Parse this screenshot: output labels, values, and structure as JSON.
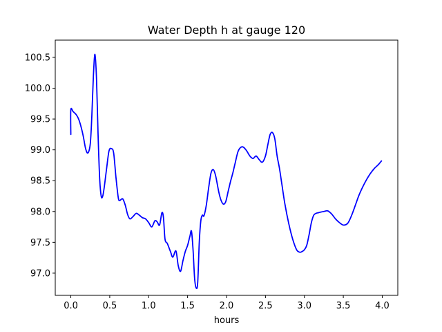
{
  "chart_data": {
    "type": "line",
    "title": "Water Depth h at gauge 120",
    "xlabel": "hours",
    "ylabel": "",
    "xlim": [
      -0.2,
      4.2
    ],
    "ylim": [
      96.64,
      100.78
    ],
    "xticks": [
      0.0,
      0.5,
      1.0,
      1.5,
      2.0,
      2.5,
      3.0,
      3.5,
      4.0
    ],
    "xtick_labels": [
      "0.0",
      "0.5",
      "1.0",
      "1.5",
      "2.0",
      "2.5",
      "3.0",
      "3.5",
      "4.0"
    ],
    "yticks": [
      97.0,
      97.5,
      98.0,
      98.5,
      99.0,
      99.5,
      100.0,
      100.5
    ],
    "ytick_labels": [
      "97.0",
      "97.5",
      "98.0",
      "98.5",
      "99.0",
      "99.5",
      "100.0",
      "100.5"
    ],
    "grid": false,
    "line_color": "#0000ff",
    "series": [
      {
        "x": [
          0.0,
          0.0,
          0.03,
          0.07,
          0.1,
          0.13,
          0.16,
          0.19,
          0.22,
          0.25,
          0.27,
          0.29,
          0.31,
          0.33,
          0.35,
          0.37,
          0.39,
          0.41,
          0.43,
          0.46,
          0.49,
          0.52,
          0.55,
          0.58,
          0.61,
          0.63,
          0.65,
          0.67,
          0.7,
          0.73,
          0.76,
          0.8,
          0.84,
          0.88,
          0.92,
          0.96,
          1.0,
          1.04,
          1.08,
          1.11,
          1.14,
          1.17,
          1.19,
          1.21,
          1.24,
          1.28,
          1.31,
          1.35,
          1.38,
          1.41,
          1.44,
          1.47,
          1.5,
          1.53,
          1.55,
          1.57,
          1.59,
          1.61,
          1.63,
          1.65,
          1.67,
          1.69,
          1.71,
          1.74,
          1.77,
          1.8,
          1.83,
          1.86,
          1.9,
          1.93,
          1.96,
          1.99,
          2.02,
          2.05,
          2.08,
          2.11,
          2.15,
          2.2,
          2.25,
          2.3,
          2.34,
          2.38,
          2.42,
          2.46,
          2.5,
          2.53,
          2.56,
          2.59,
          2.62,
          2.65,
          2.68,
          2.71,
          2.75,
          2.8,
          2.85,
          2.9,
          2.94,
          2.97,
          3.0,
          3.03,
          3.06,
          3.09,
          3.12,
          3.15,
          3.18,
          3.21,
          3.25,
          3.3,
          3.35,
          3.4,
          3.45,
          3.5,
          3.55,
          3.58,
          3.62,
          3.66,
          3.7,
          3.75,
          3.8,
          3.85,
          3.9,
          3.95,
          3.99
        ],
        "y": [
          99.25,
          99.65,
          99.62,
          99.57,
          99.5,
          99.38,
          99.22,
          99.02,
          98.95,
          99.1,
          99.55,
          100.2,
          100.55,
          100.15,
          99.25,
          98.55,
          98.25,
          98.25,
          98.4,
          98.7,
          98.98,
          99.02,
          98.95,
          98.55,
          98.22,
          98.18,
          98.2,
          98.2,
          98.1,
          97.95,
          97.88,
          97.92,
          97.97,
          97.94,
          97.9,
          97.88,
          97.82,
          97.75,
          97.85,
          97.83,
          97.78,
          97.98,
          97.9,
          97.55,
          97.48,
          97.35,
          97.26,
          97.36,
          97.12,
          97.03,
          97.2,
          97.35,
          97.45,
          97.6,
          97.68,
          97.38,
          96.92,
          96.76,
          96.85,
          97.5,
          97.85,
          97.94,
          97.93,
          98.1,
          98.38,
          98.62,
          98.68,
          98.58,
          98.32,
          98.18,
          98.12,
          98.16,
          98.32,
          98.48,
          98.62,
          98.78,
          98.98,
          99.05,
          99.0,
          98.9,
          98.86,
          98.9,
          98.84,
          98.8,
          98.9,
          99.08,
          99.25,
          99.28,
          99.18,
          98.9,
          98.7,
          98.45,
          98.12,
          97.8,
          97.55,
          97.38,
          97.34,
          97.35,
          97.38,
          97.45,
          97.62,
          97.82,
          97.94,
          97.97,
          97.98,
          97.99,
          98.0,
          98.01,
          97.96,
          97.88,
          97.82,
          97.78,
          97.8,
          97.86,
          97.98,
          98.12,
          98.26,
          98.4,
          98.52,
          98.62,
          98.7,
          98.76,
          98.82
        ]
      }
    ]
  }
}
